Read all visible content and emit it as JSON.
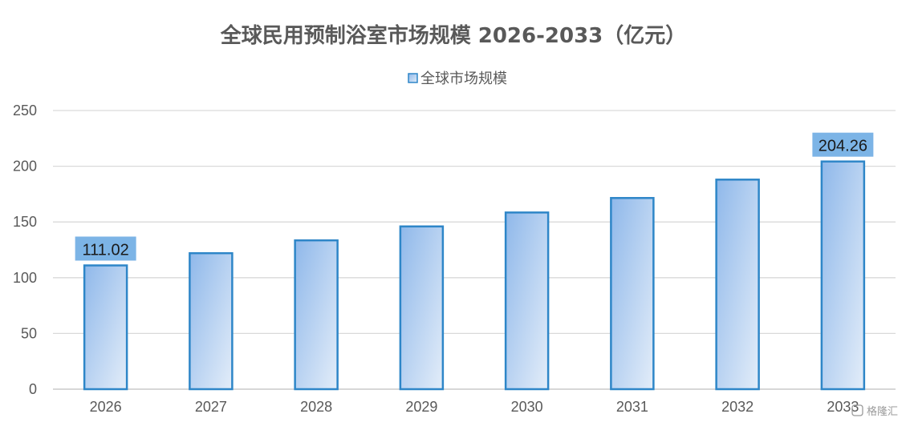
{
  "chart_data": {
    "type": "bar",
    "title": "全球民用预制浴室市场规模 2026-2033（亿元）",
    "categories": [
      "2026",
      "2027",
      "2028",
      "2029",
      "2030",
      "2031",
      "2032",
      "2033"
    ],
    "series": [
      {
        "name": "全球市场规模",
        "values": [
          111.02,
          122,
          133.5,
          146,
          158.5,
          171.5,
          188,
          204.26
        ]
      }
    ],
    "data_labels": [
      "111.02",
      "",
      "",
      "",
      "",
      "",
      "",
      "204.26"
    ],
    "ylim": [
      0,
      250
    ],
    "yticks": [
      0,
      50,
      100,
      150,
      200,
      250
    ],
    "grid": true,
    "legend_position": "top-center",
    "colors": {
      "bar_fill_top": "#8fb8ea",
      "bar_fill_bottom": "#dfeaf8",
      "bar_stroke": "#2e86c8",
      "label_bg": "#7cb4e6",
      "grid": "#d9d9d9",
      "axis": "#bfbfbf"
    }
  },
  "watermark": {
    "text": "格隆汇"
  }
}
